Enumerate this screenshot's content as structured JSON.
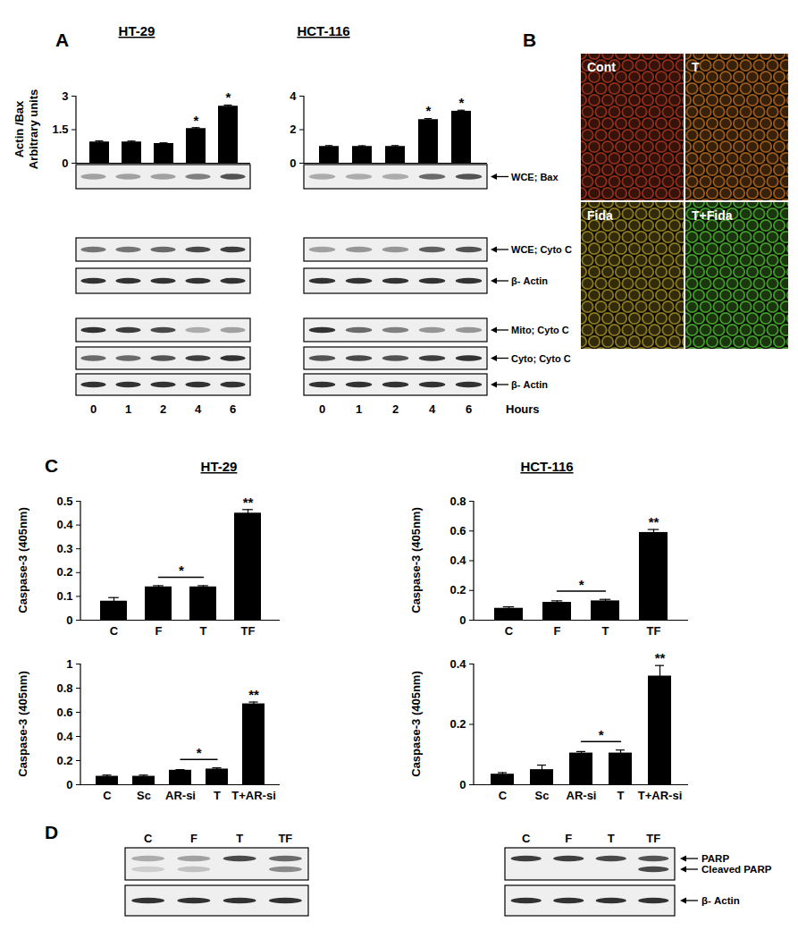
{
  "panel_labels": [
    "A",
    "B",
    "C",
    "D"
  ],
  "chart_data": [
    {
      "type": "bar",
      "title": "HT-29",
      "y_label": [
        "Actin /Bax",
        "Arbitrary units"
      ],
      "categories": [
        "0",
        "1",
        "2",
        "4",
        "6"
      ],
      "values": [
        0.95,
        0.95,
        0.88,
        1.55,
        2.55
      ],
      "errors": [
        0.05,
        0.04,
        0.03,
        0.04,
        0.05
      ],
      "color": "#000000",
      "ylim": [
        0,
        3
      ],
      "yticks": [
        0,
        1.5,
        3
      ],
      "tick_labels": "y",
      "significance": [
        null,
        null,
        null,
        "*",
        "*"
      ]
    },
    {
      "type": "bar",
      "title": "HCT-116",
      "categories": [
        "0",
        "1",
        "2",
        "4",
        "6"
      ],
      "values": [
        1.0,
        1.0,
        1.0,
        2.6,
        3.1
      ],
      "errors": [
        0.05,
        0.04,
        0.05,
        0.06,
        0.06
      ],
      "color": "#000000",
      "ylim": [
        0,
        4
      ],
      "yticks": [
        0,
        2,
        4
      ],
      "tick_labels": "y",
      "significance": [
        null,
        null,
        null,
        "*",
        "*"
      ]
    },
    {
      "type": "bar",
      "title": "HT-29",
      "y_label": "Caspase-3 (405nm)",
      "categories": [
        "C",
        "F",
        "T",
        "TF"
      ],
      "values": [
        0.08,
        0.14,
        0.14,
        0.45
      ],
      "errors": [
        0.015,
        0.005,
        0.005,
        0.015
      ],
      "color": "#000000",
      "ylim": [
        0,
        0.5
      ],
      "yticks": [
        0,
        0.1,
        0.2,
        0.3,
        0.4,
        0.5
      ],
      "significance": [
        null,
        null,
        null,
        "**"
      ],
      "brackets": [
        {
          "from": "F",
          "to": "T",
          "label": "*"
        }
      ]
    },
    {
      "type": "bar",
      "title": "HCT-116",
      "y_label": "Caspase-3 (405nm)",
      "categories": [
        "C",
        "F",
        "T",
        "TF"
      ],
      "values": [
        0.08,
        0.12,
        0.13,
        0.59
      ],
      "errors": [
        0.01,
        0.01,
        0.01,
        0.02
      ],
      "color": "#000000",
      "ylim": [
        0,
        0.8
      ],
      "yticks": [
        0,
        0.2,
        0.4,
        0.6,
        0.8
      ],
      "significance": [
        null,
        null,
        null,
        "**"
      ],
      "brackets": [
        {
          "from": "F",
          "to": "T",
          "label": "*"
        }
      ]
    },
    {
      "type": "bar",
      "y_label": "Caspase-3 (405nm)",
      "categories": [
        "C",
        "Sc",
        "AR-si",
        "T",
        "T+AR-si"
      ],
      "values": [
        0.07,
        0.07,
        0.12,
        0.13,
        0.67
      ],
      "errors": [
        0.01,
        0.01,
        0.005,
        0.01,
        0.015
      ],
      "color": "#000000",
      "ylim": [
        0,
        1
      ],
      "yticks": [
        0,
        0.2,
        0.4,
        0.6,
        0.8,
        1
      ],
      "significance": [
        null,
        null,
        null,
        null,
        "**"
      ],
      "brackets": [
        {
          "from": "AR-si",
          "to": "T",
          "label": "*"
        }
      ]
    },
    {
      "type": "bar",
      "y_label": "Caspase-3 (405nm)",
      "categories": [
        "C",
        "Sc",
        "AR-si",
        "T",
        "T+AR-si"
      ],
      "values": [
        0.035,
        0.05,
        0.105,
        0.105,
        0.36
      ],
      "errors": [
        0.005,
        0.015,
        0.005,
        0.01,
        0.035
      ],
      "color": "#000000",
      "ylim": [
        0,
        0.4
      ],
      "yticks": [
        0,
        0.2,
        0.4
      ],
      "significance": [
        null,
        null,
        null,
        null,
        "**"
      ],
      "brackets": [
        {
          "from": "AR-si",
          "to": "T",
          "label": "*"
        }
      ]
    }
  ],
  "panel_A": {
    "lanes": [
      "0",
      "1",
      "2",
      "4",
      "6"
    ],
    "lane_title": "Hours",
    "rows": [
      {
        "label": "WCE; Bax",
        "intensity": [
          [
            0.35,
            0.35,
            0.35,
            0.5,
            0.7
          ],
          [
            0.3,
            0.3,
            0.3,
            0.6,
            0.7
          ]
        ]
      },
      {
        "label": "WCE; Cyto C",
        "intensity": [
          [
            0.55,
            0.55,
            0.6,
            0.75,
            0.8
          ],
          [
            0.35,
            0.4,
            0.4,
            0.65,
            0.7
          ]
        ]
      },
      {
        "label": "β- Actin",
        "intensity": [
          [
            0.85,
            0.85,
            0.85,
            0.85,
            0.85
          ],
          [
            0.85,
            0.85,
            0.85,
            0.85,
            0.85
          ]
        ]
      },
      {
        "label": "Mito; Cyto C",
        "intensity": [
          [
            0.85,
            0.8,
            0.75,
            0.3,
            0.35
          ],
          [
            0.85,
            0.6,
            0.5,
            0.4,
            0.4
          ]
        ]
      },
      {
        "label": "Cyto; Cyto C",
        "intensity": [
          [
            0.6,
            0.6,
            0.7,
            0.8,
            0.85
          ],
          [
            0.7,
            0.75,
            0.7,
            0.8,
            0.85
          ]
        ]
      },
      {
        "label": "β- Actin",
        "intensity": [
          [
            0.85,
            0.85,
            0.85,
            0.85,
            0.85
          ],
          [
            0.85,
            0.85,
            0.85,
            0.85,
            0.85
          ]
        ]
      }
    ]
  },
  "panel_B": {
    "images": [
      {
        "label": "Cont",
        "color": "#a8321c"
      },
      {
        "label": "T",
        "color": "#b0661e"
      },
      {
        "label": "Fida",
        "color": "#9c8a22"
      },
      {
        "label": "T+Fida",
        "color": "#49b030"
      }
    ]
  },
  "panel_D": {
    "lanes": [
      "C",
      "F",
      "T",
      "TF"
    ],
    "blots": [
      {
        "boxes": [
          {
            "bands": [
              {
                "intensity": [
                  0.3,
                  0.35,
                  0.75,
                  0.6
                ]
              },
              {
                "intensity": [
                  0.15,
                  0.2,
                  0,
                  0.45
                ]
              }
            ]
          },
          {
            "bands": [
              {
                "intensity": [
                  0.85,
                  0.85,
                  0.85,
                  0.85
                ]
              }
            ]
          }
        ]
      },
      {
        "boxes": [
          {
            "bands": [
              {
                "label": "PARP",
                "intensity": [
                  0.8,
                  0.8,
                  0.75,
                  0.7
                ]
              },
              {
                "label": "Cleaved PARP",
                "intensity": [
                  0,
                  0,
                  0,
                  0.75
                ]
              }
            ]
          },
          {
            "bands": [
              {
                "label": "β- Actin",
                "intensity": [
                  0.85,
                  0.85,
                  0.85,
                  0.85
                ]
              }
            ]
          }
        ]
      }
    ]
  }
}
